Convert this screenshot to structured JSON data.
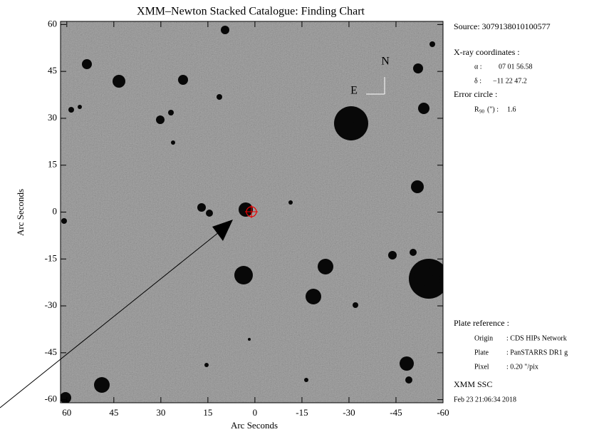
{
  "chart_data": {
    "type": "finding-chart",
    "title": "XMM–Newton Stacked Catalogue: Finding Chart",
    "x_label": "Arc Seconds",
    "y_label": "Arc Seconds",
    "xlim": [
      62,
      -60
    ],
    "ylim": [
      -61,
      61
    ],
    "xticks": [
      60,
      45,
      30,
      15,
      0,
      -15,
      -30,
      -45,
      -60
    ],
    "yticks": [
      60,
      45,
      30,
      15,
      0,
      -15,
      -30,
      -45,
      -60
    ],
    "compass": {
      "north": "N",
      "east": "E"
    }
  },
  "info": {
    "source": "Source: 3079138010100577",
    "xray_heading": "X-ray coordinates :",
    "alpha_label": "α :",
    "alpha_value": "07 01 56.58",
    "delta_label": "δ :",
    "delta_value": "−11 22 47.2",
    "error_heading": "Error circle :",
    "r_label": "R",
    "r_sub": "90",
    "r_unit": "(\") :",
    "r_value": "1.6",
    "plate_heading": "Plate reference :",
    "origin_label": "Origin",
    "origin_value": ": CDS HIPs Network",
    "plate_label": "Plate",
    "plate_value": ": PanSTARRS DR1 g",
    "pixel_label": "Pixel",
    "pixel_value": ": 0.20 \"/pix",
    "producer": "XMM SSC",
    "date": "Feb 23 21:06:34 2018"
  }
}
